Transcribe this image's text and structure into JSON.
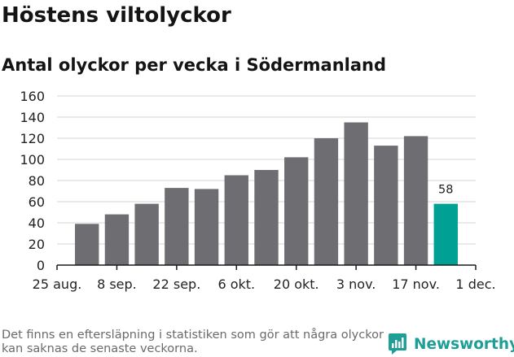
{
  "title": "Höstens viltolyckor",
  "subtitle": "Antal olyckor per vecka i Södermanland",
  "note": "Det finns en eftersläpning i statistiken som gör att några olyckor kan saknas de senaste veckorna.",
  "brand": {
    "name": "Newsworthy",
    "icon": "newsworthy-logo-icon"
  },
  "colors": {
    "bar": "#6e6d72",
    "highlight": "#00a095",
    "grid": "#d4d4d4",
    "axis": "#1a1a1a",
    "brand": "#1d9e96"
  },
  "chart_data": {
    "type": "bar",
    "title": "Antal olyckor per vecka i Södermanland",
    "xlabel": "",
    "ylabel": "",
    "ylim": [
      0,
      160
    ],
    "yticks": [
      0,
      20,
      40,
      60,
      80,
      100,
      120,
      140,
      160
    ],
    "values": [
      39,
      48,
      58,
      73,
      72,
      85,
      90,
      102,
      120,
      135,
      113,
      122,
      58
    ],
    "highlight_index": 12,
    "data_labels": [
      {
        "index": 12,
        "text": "58"
      }
    ],
    "x_tick_labels": [
      "25 aug.",
      "8 sep.",
      "22 sep.",
      "6 okt.",
      "20 okt.",
      "3 nov.",
      "17 nov.",
      "1 dec."
    ],
    "grid": true
  }
}
